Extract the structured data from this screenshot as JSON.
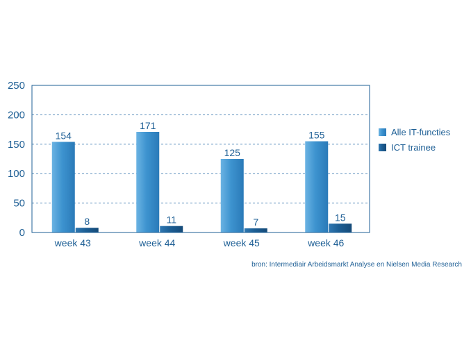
{
  "chart_data": {
    "type": "bar",
    "categories": [
      "week 43",
      "week 44",
      "week 45",
      "week 46"
    ],
    "series": [
      {
        "name": "Alle IT-functies",
        "values": [
          154,
          171,
          125,
          155
        ],
        "color": "#3d93cf"
      },
      {
        "name": "ICT trainee",
        "values": [
          8,
          11,
          7,
          15
        ],
        "color": "#1c5e94"
      }
    ],
    "yticks": [
      0,
      50,
      100,
      150,
      200,
      250
    ],
    "ylim": [
      0,
      250
    ],
    "grid": true,
    "legend": "right",
    "title": "",
    "xlabel": "",
    "ylabel": "",
    "source": "bron: Intermediair Arbeidsmarkt Analyse en Nielsen Media Research"
  }
}
